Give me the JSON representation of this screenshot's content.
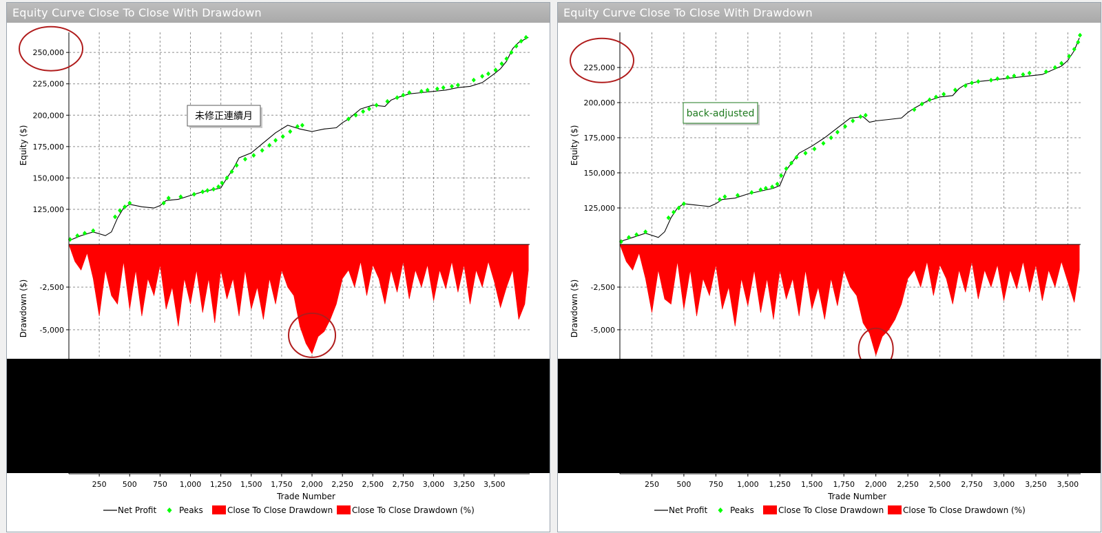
{
  "panels": [
    {
      "title": "Equity Curve Close To Close With Drawdown",
      "annotation": "未修正連續月",
      "chart_data": {
        "type": "line",
        "title": "Equity Curve Close To Close With Drawdown",
        "xlabel": "Trade Number",
        "ylabel_top": "Equity ($)",
        "ylabel_bottom": "Drawdown ($)",
        "x_ticks": [
          "250",
          "500",
          "750",
          "1,000",
          "1,250",
          "1,500",
          "1,750",
          "2,000",
          "2,250",
          "2,500",
          "2,750",
          "3,000",
          "3,250",
          "3,500"
        ],
        "x_tick_values": [
          250,
          500,
          750,
          1000,
          1250,
          1500,
          1750,
          2000,
          2250,
          2500,
          2750,
          3000,
          3250,
          3500
        ],
        "xlim": [
          0,
          3790
        ],
        "equity_ticks": [
          "125,000",
          "150,000",
          "175,000",
          "200,000",
          "225,000",
          "250,000"
        ],
        "equity_tick_values": [
          125000,
          150000,
          175000,
          200000,
          225000,
          250000
        ],
        "equity_ylim": [
          97000,
          266000
        ],
        "drawdown_ticks": [
          "-2,500",
          "-5,000"
        ],
        "drawdown_tick_values": [
          -2500,
          -5000
        ],
        "drawdown_ylim": [
          -6700,
          0
        ],
        "series": [
          {
            "name": "Net Profit",
            "kind": "equity",
            "color": "#000000",
            "x": [
              0,
              100,
              200,
              300,
              350,
              400,
              450,
              500,
              600,
              700,
              750,
              800,
              900,
              1000,
              1100,
              1200,
              1250,
              1300,
              1350,
              1400,
              1500,
              1600,
              1700,
              1800,
              1900,
              1950,
              2000,
              2100,
              2200,
              2250,
              2300,
              2400,
              2500,
              2600,
              2650,
              2700,
              2800,
              2900,
              3000,
              3100,
              3200,
              3300,
              3400,
              3500,
              3550,
              3600,
              3650,
              3700,
              3780
            ],
            "y": [
              100000,
              104000,
              107000,
              104000,
              107000,
              118000,
              126000,
              129000,
              127000,
              126000,
              128000,
              132000,
              133000,
              136000,
              139000,
              141000,
              142000,
              150000,
              157000,
              166000,
              170000,
              178000,
              186000,
              192000,
              189000,
              188000,
              187000,
              189000,
              190000,
              194000,
              197000,
              205000,
              208000,
              207000,
              212000,
              214000,
              217000,
              218000,
              219000,
              220000,
              222000,
              223000,
              226000,
              233000,
              237000,
              243000,
              253000,
              258000,
              262000
            ]
          },
          {
            "name": "Peaks",
            "kind": "peaks",
            "color": "#00ff00",
            "x": [
              10,
              70,
              130,
              200,
              380,
              420,
              460,
              500,
              780,
              820,
              920,
              1030,
              1100,
              1140,
              1190,
              1230,
              1260,
              1300,
              1340,
              1380,
              1450,
              1520,
              1590,
              1650,
              1700,
              1760,
              1820,
              1880,
              1920,
              2300,
              2360,
              2420,
              2470,
              2530,
              2620,
              2700,
              2750,
              2800,
              2900,
              2950,
              3030,
              3080,
              3150,
              3200,
              3330,
              3400,
              3450,
              3510,
              3560,
              3600,
              3640,
              3680,
              3720,
              3760
            ],
            "y": [
              101000,
              104000,
              106000,
              108000,
              119000,
              124000,
              127000,
              130000,
              130000,
              134000,
              135000,
              137000,
              139000,
              140000,
              141000,
              143000,
              146000,
              150000,
              155000,
              160000,
              165000,
              168000,
              172000,
              176000,
              180000,
              183000,
              187000,
              191000,
              192000,
              197000,
              200000,
              203000,
              205000,
              208000,
              211000,
              214000,
              216000,
              218000,
              219000,
              220000,
              221000,
              222000,
              223000,
              224000,
              228000,
              231000,
              233000,
              236000,
              241000,
              245000,
              250000,
              255000,
              259000,
              262000
            ]
          },
          {
            "name": "Close To Close Drawdown",
            "kind": "drawdown",
            "color": "#ff0000",
            "x": [
              0,
              50,
              100,
              150,
              200,
              250,
              300,
              350,
              400,
              450,
              500,
              550,
              600,
              650,
              700,
              750,
              800,
              850,
              900,
              950,
              1000,
              1050,
              1100,
              1150,
              1200,
              1250,
              1300,
              1350,
              1400,
              1450,
              1500,
              1550,
              1600,
              1650,
              1700,
              1750,
              1800,
              1850,
              1900,
              1950,
              2000,
              2050,
              2100,
              2150,
              2200,
              2250,
              2300,
              2350,
              2400,
              2450,
              2500,
              2550,
              2600,
              2650,
              2700,
              2750,
              2800,
              2850,
              2900,
              2950,
              3000,
              3050,
              3100,
              3150,
              3200,
              3250,
              3300,
              3350,
              3400,
              3450,
              3500,
              3550,
              3600,
              3650,
              3700,
              3750,
              3780
            ],
            "y": [
              0,
              -1000,
              -1500,
              -500,
              -2000,
              -4200,
              -1500,
              -3000,
              -3500,
              -1000,
              -3800,
              -1500,
              -4200,
              -2000,
              -3000,
              -1200,
              -3800,
              -2500,
              -4800,
              -2000,
              -3500,
              -1500,
              -4000,
              -2000,
              -4600,
              -1500,
              -3200,
              -2000,
              -4200,
              -1500,
              -3800,
              -2500,
              -4400,
              -2000,
              -3500,
              -1500,
              -2500,
              -3000,
              -4800,
              -5800,
              -6400,
              -5400,
              -5100,
              -4400,
              -3500,
              -2000,
              -1500,
              -2500,
              -1000,
              -3000,
              -1200,
              -2000,
              -3500,
              -1500,
              -2800,
              -1000,
              -3200,
              -1500,
              -2500,
              -1200,
              -3300,
              -1500,
              -2600,
              -1000,
              -2800,
              -1200,
              -3500,
              -1500,
              -2500,
              -1000,
              -2200,
              -3700,
              -2500,
              -1500,
              -4400,
              -3500,
              -1500
            ]
          },
          {
            "name": "Close To Close Drawdown (%)",
            "kind": "legend-only",
            "color": "#ff0000"
          }
        ],
        "highlight_circles": [
          {
            "target": "equity-axis-top-label",
            "x": 0,
            "y": 253000
          },
          {
            "target": "max-drawdown",
            "x": 2000,
            "y": -5000
          }
        ]
      }
    },
    {
      "title": "Equity Curve Close To Close With Drawdown",
      "annotation": "back-adjusted",
      "chart_data": {
        "type": "line",
        "title": "Equity Curve Close To Close With Drawdown",
        "xlabel": "Trade Number",
        "ylabel_top": "Equity ($)",
        "ylabel_bottom": "Drawdown ($)",
        "x_ticks": [
          "250",
          "500",
          "750",
          "1,000",
          "1,250",
          "1,500",
          "1,750",
          "2,000",
          "2,250",
          "2,500",
          "2,750",
          "3,000",
          "3,250",
          "3,500"
        ],
        "x_tick_values": [
          250,
          500,
          750,
          1000,
          1250,
          1500,
          1750,
          2000,
          2250,
          2500,
          2750,
          3000,
          3250,
          3500
        ],
        "xlim": [
          0,
          3600
        ],
        "equity_ticks": [
          "125,000",
          "150,000",
          "175,000",
          "200,000",
          "225,000"
        ],
        "equity_tick_values": [
          125000,
          150000,
          175000,
          200000,
          225000
        ],
        "equity_ylim": [
          99000,
          250000
        ],
        "drawdown_ticks": [
          "-2,500",
          "-5,000"
        ],
        "drawdown_tick_values": [
          -2500,
          -5000
        ],
        "drawdown_ylim": [
          -6700,
          0
        ],
        "series": [
          {
            "name": "Net Profit",
            "kind": "equity",
            "color": "#000000",
            "x": [
              0,
              100,
              200,
              300,
              350,
              400,
              450,
              500,
              600,
              700,
              750,
              800,
              900,
              1000,
              1100,
              1200,
              1250,
              1300,
              1350,
              1400,
              1500,
              1600,
              1700,
              1800,
              1900,
              1950,
              2000,
              2100,
              2200,
              2250,
              2300,
              2400,
              2500,
              2600,
              2650,
              2700,
              2800,
              2900,
              3000,
              3100,
              3200,
              3300,
              3400,
              3450,
              3500,
              3550,
              3590
            ],
            "y": [
              101000,
              104000,
              107000,
              104000,
              108000,
              118000,
              125000,
              128000,
              127000,
              126000,
              128000,
              131000,
              132000,
              135000,
              137000,
              139000,
              141000,
              152000,
              158000,
              164000,
              169000,
              175000,
              182000,
              189000,
              190000,
              186000,
              187000,
              188000,
              189000,
              193000,
              196000,
              201000,
              204000,
              205000,
              210000,
              213000,
              215000,
              216000,
              217000,
              218000,
              219000,
              220000,
              224000,
              226000,
              230000,
              237000,
              246000
            ]
          },
          {
            "name": "Peaks",
            "kind": "peaks",
            "color": "#00ff00",
            "x": [
              10,
              70,
              130,
              200,
              380,
              420,
              460,
              500,
              780,
              820,
              920,
              1030,
              1100,
              1140,
              1190,
              1230,
              1260,
              1300,
              1340,
              1380,
              1450,
              1520,
              1590,
              1650,
              1700,
              1760,
              1820,
              1880,
              1920,
              2300,
              2360,
              2420,
              2470,
              2530,
              2620,
              2700,
              2750,
              2800,
              2900,
              2950,
              3030,
              3080,
              3150,
              3200,
              3330,
              3400,
              3450,
              3510,
              3550,
              3580,
              3595
            ],
            "y": [
              101000,
              104000,
              106000,
              108000,
              118000,
              122000,
              125000,
              128000,
              131000,
              133000,
              134000,
              136000,
              138000,
              139000,
              140000,
              142000,
              148000,
              153000,
              157000,
              161000,
              164000,
              167000,
              171000,
              175000,
              179000,
              183000,
              187000,
              190000,
              191000,
              195000,
              199000,
              202000,
              204000,
              206000,
              209000,
              212000,
              214000,
              215000,
              216000,
              217000,
              218000,
              219000,
              220000,
              221000,
              222000,
              225000,
              228000,
              233000,
              238000,
              243000,
              248000
            ]
          },
          {
            "name": "Close To Close Drawdown",
            "kind": "drawdown",
            "color": "#ff0000",
            "x": [
              0,
              50,
              100,
              150,
              200,
              250,
              300,
              350,
              400,
              450,
              500,
              550,
              600,
              650,
              700,
              750,
              800,
              850,
              900,
              950,
              1000,
              1050,
              1100,
              1150,
              1200,
              1250,
              1300,
              1350,
              1400,
              1450,
              1500,
              1550,
              1600,
              1650,
              1700,
              1750,
              1800,
              1850,
              1900,
              1950,
              2000,
              2050,
              2100,
              2150,
              2200,
              2250,
              2300,
              2350,
              2400,
              2450,
              2500,
              2550,
              2600,
              2650,
              2700,
              2750,
              2800,
              2850,
              2900,
              2950,
              3000,
              3050,
              3100,
              3150,
              3200,
              3250,
              3300,
              3350,
              3400,
              3450,
              3500,
              3550,
              3590
            ],
            "y": [
              0,
              -1000,
              -1500,
              -500,
              -2000,
              -4000,
              -1500,
              -3200,
              -3500,
              -1000,
              -3800,
              -1500,
              -4200,
              -2000,
              -3000,
              -1200,
              -3800,
              -2500,
              -4800,
              -2000,
              -3600,
              -1500,
              -4000,
              -2000,
              -4400,
              -1500,
              -3200,
              -2000,
              -4200,
              -1500,
              -3800,
              -2500,
              -4400,
              -2000,
              -3600,
              -1500,
              -2500,
              -3000,
              -4600,
              -5200,
              -6500,
              -5400,
              -5000,
              -4400,
              -3500,
              -2000,
              -1500,
              -2500,
              -1000,
              -3000,
              -1200,
              -2000,
              -3500,
              -1500,
              -2800,
              -1000,
              -3200,
              -1500,
              -2500,
              -1200,
              -3300,
              -1500,
              -2600,
              -1000,
              -2800,
              -1200,
              -3300,
              -1500,
              -2500,
              -1000,
              -2200,
              -3400,
              -1500
            ]
          },
          {
            "name": "Close To Close Drawdown (%)",
            "kind": "legend-only",
            "color": "#ff0000"
          }
        ],
        "highlight_circles": [
          {
            "target": "equity-axis-top-label",
            "x": 0,
            "y": 230000
          },
          {
            "target": "max-drawdown",
            "x": 2000,
            "y": -5800
          }
        ]
      }
    }
  ],
  "legend": {
    "net_profit": "Net Profit",
    "peaks": "Peaks",
    "drawdown": "Close To Close Drawdown",
    "drawdown_pct": "Close To Close Drawdown (%)"
  },
  "colors": {
    "net_profit": "#000000",
    "peaks": "#00ff00",
    "drawdown": "#ff0000",
    "circle": "#b01c1c",
    "annotation_left": "#000000",
    "annotation_right": "#1e7a1e",
    "redaction": "#000000"
  }
}
